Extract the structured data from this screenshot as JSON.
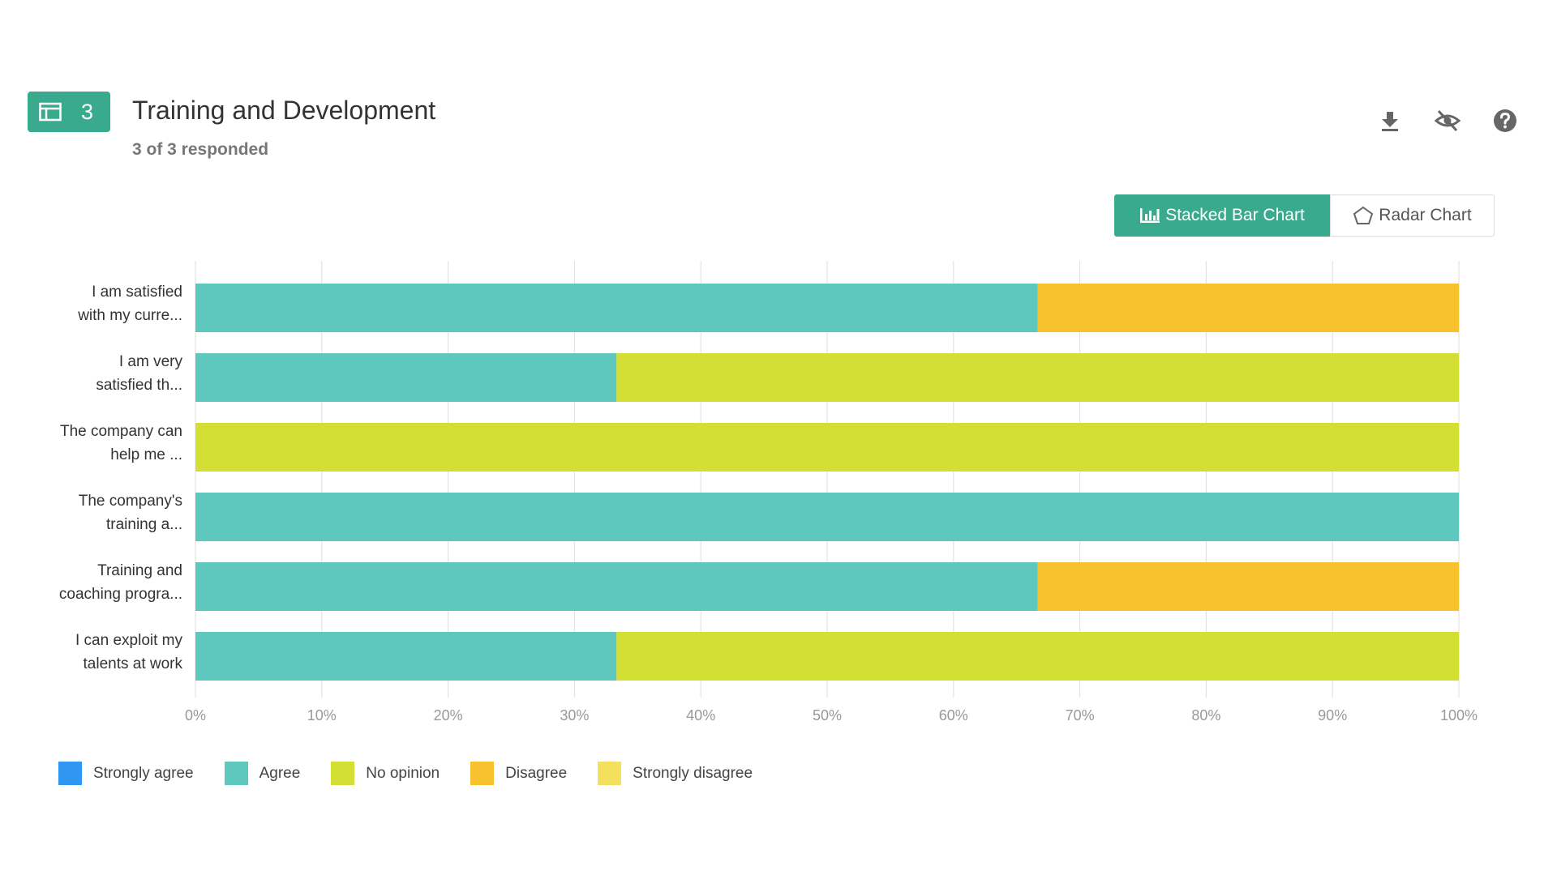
{
  "header": {
    "question_number": "3",
    "title": "Training and Development",
    "subtitle": "3 of 3 responded",
    "icons": [
      "table-icon",
      "download-icon",
      "hide-icon",
      "help-icon"
    ]
  },
  "toggle": {
    "stacked_label": "Stacked Bar Chart",
    "radar_label": "Radar Chart",
    "active": "Stacked Bar Chart"
  },
  "colors": {
    "accent": "#3aaa8e",
    "strongly_agree": "#2f96f2",
    "agree": "#5ec8be",
    "no_opinion": "#d4df36",
    "disagree": "#f8c22e",
    "strongly_disagree": "#f4e05c"
  },
  "chart_data": {
    "type": "bar",
    "orientation": "horizontal",
    "stacked": true,
    "categories": [
      [
        "I am satisfied",
        "with my curre..."
      ],
      [
        "I am very",
        "satisfied th..."
      ],
      [
        "The company can",
        "help me ..."
      ],
      [
        "The company's",
        "training a..."
      ],
      [
        "Training and",
        "coaching progra..."
      ],
      [
        "I can exploit my",
        "talents at work"
      ]
    ],
    "series": [
      {
        "name": "Strongly agree",
        "color": "#2f96f2",
        "values": [
          0,
          0,
          0,
          0,
          0,
          0
        ]
      },
      {
        "name": "Agree",
        "color": "#5ec8be",
        "values": [
          66.67,
          33.33,
          0,
          100,
          66.67,
          33.33
        ]
      },
      {
        "name": "No opinion",
        "color": "#d4df36",
        "values": [
          0,
          66.67,
          100,
          0,
          0,
          66.67
        ]
      },
      {
        "name": "Disagree",
        "color": "#f8c22e",
        "values": [
          33.33,
          0,
          0,
          0,
          33.33,
          0
        ]
      },
      {
        "name": "Strongly disagree",
        "color": "#f4e05c",
        "values": [
          0,
          0,
          0,
          0,
          0,
          0
        ]
      }
    ],
    "x_ticks": [
      "0%",
      "10%",
      "20%",
      "30%",
      "40%",
      "50%",
      "60%",
      "70%",
      "80%",
      "90%",
      "100%"
    ],
    "xlim": [
      0,
      100
    ],
    "grid": true,
    "legend_position": "bottom-left"
  }
}
